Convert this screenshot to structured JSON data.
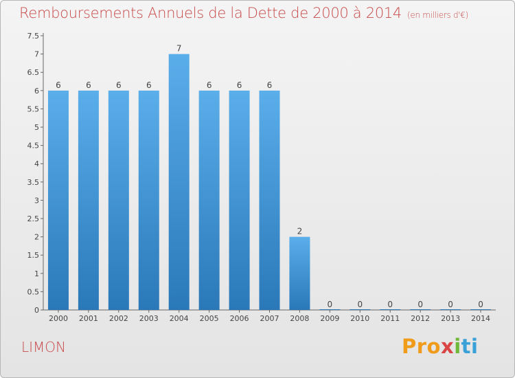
{
  "title": "Remboursements Annuels de la Dette de 2000 à 2014",
  "subtitle": "(en milliers d'€)",
  "commune": "LIMON",
  "logo": {
    "parts": [
      "Pro",
      "x",
      "i",
      "ti"
    ]
  },
  "colors": {
    "bar_top": "#5aaeea",
    "bar_bottom": "#2a78b8",
    "title": "#c84a4a"
  },
  "chart_data": {
    "type": "bar",
    "title": "Remboursements Annuels de la Dette de 2000 à 2014",
    "subtitle": "(en milliers d'€)",
    "xlabel": "",
    "ylabel": "",
    "categories": [
      "2000",
      "2001",
      "2002",
      "2003",
      "2004",
      "2005",
      "2006",
      "2007",
      "2008",
      "2009",
      "2010",
      "2011",
      "2012",
      "2013",
      "2014"
    ],
    "values": [
      6,
      6,
      6,
      6,
      7,
      6,
      6,
      6,
      2,
      0,
      0,
      0,
      0,
      0,
      0
    ],
    "data_labels": [
      "6",
      "6",
      "6",
      "6",
      "7",
      "6",
      "6",
      "6",
      "2",
      "0",
      "0",
      "0",
      "0",
      "0",
      "0"
    ],
    "ylim": [
      0,
      7.5
    ],
    "yticks": [
      0,
      0.5,
      1,
      1.5,
      2,
      2.5,
      3,
      3.5,
      4,
      4.5,
      5,
      5.5,
      6,
      6.5,
      7,
      7.5
    ],
    "ytick_labels": [
      "0",
      "0.5",
      "1",
      "1.5",
      "2",
      "2.5",
      "3",
      "3.5",
      "4",
      "4.5",
      "5",
      "5.5",
      "6",
      "6.5",
      "7",
      "7.5"
    ],
    "grid": false,
    "legend": "none"
  }
}
